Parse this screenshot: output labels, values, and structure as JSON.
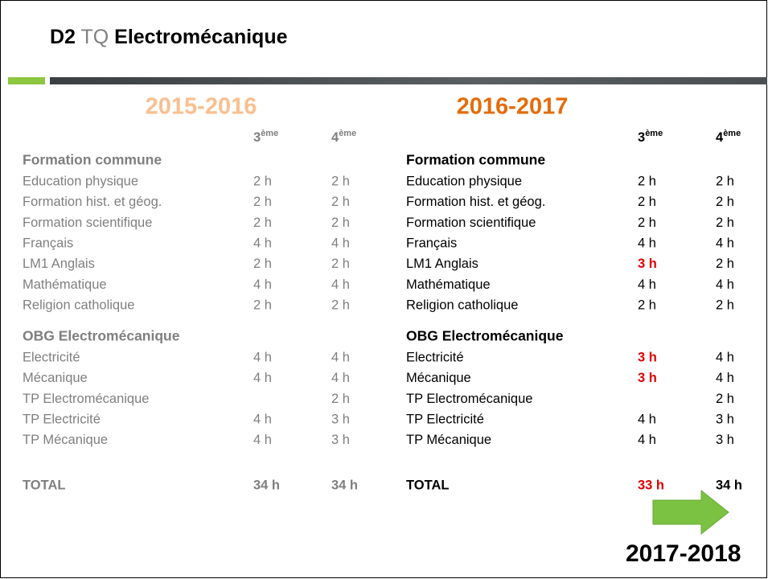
{
  "title": {
    "code": "D2",
    "type": "TQ",
    "name": "Electromécanique"
  },
  "tables": [
    {
      "year": "2015-2016",
      "year_color": "#f9bf8f",
      "text_color": "#7f7f7f",
      "columns": [
        {
          "num": "3",
          "sup": "ème"
        },
        {
          "num": "4",
          "sup": "ème"
        }
      ],
      "sections": [
        {
          "heading": "Formation commune",
          "rows": [
            [
              "Education physique",
              "2 h",
              "2 h"
            ],
            [
              "Formation hist. et géog.",
              "2 h",
              "2 h"
            ],
            [
              "Formation scientifique",
              "2 h",
              "2 h"
            ],
            [
              "Français",
              "4 h",
              "4 h"
            ],
            [
              "LM1 Anglais",
              "2 h",
              "2 h"
            ],
            [
              "Mathématique",
              "4 h",
              "4 h"
            ],
            [
              "Religion catholique",
              "2 h",
              "2 h"
            ]
          ]
        },
        {
          "heading": "OBG Electromécanique",
          "rows": [
            [
              "Electricité",
              "4 h",
              "4 h"
            ],
            [
              "Mécanique",
              "4 h",
              "4 h"
            ],
            [
              "TP Electromécanique",
              null,
              "2 h"
            ],
            [
              "TP Electricité",
              "4 h",
              "3 h"
            ],
            [
              "TP Mécanique",
              "4 h",
              "3 h"
            ]
          ]
        }
      ],
      "total": [
        "TOTAL",
        "34 h",
        "34 h"
      ]
    },
    {
      "year": "2016-2017",
      "year_color": "#e46c0a",
      "text_color": "#000000",
      "columns": [
        {
          "num": "3",
          "sup": "ème"
        },
        {
          "num": "4",
          "sup": "ème"
        }
      ],
      "sections": [
        {
          "heading": "Formation commune",
          "rows": [
            [
              "Education physique",
              "2 h",
              "2 h"
            ],
            [
              "Formation hist. et géog.",
              "2 h",
              "2 h"
            ],
            [
              "Formation scientifique",
              "2 h",
              "2 h"
            ],
            [
              "Français",
              "4 h",
              "4 h"
            ],
            [
              "LM1 Anglais",
              {
                "text": "3 h",
                "color": "#e00000"
              },
              "2 h"
            ],
            [
              "Mathématique",
              "4 h",
              "4 h"
            ],
            [
              "Religion catholique",
              "2 h",
              "2 h"
            ]
          ]
        },
        {
          "heading": "OBG Electromécanique",
          "rows": [
            [
              "Electricité",
              {
                "text": "3 h",
                "color": "#e00000"
              },
              "4 h"
            ],
            [
              "Mécanique",
              {
                "text": "3 h",
                "color": "#e00000"
              },
              "4 h"
            ],
            [
              "TP Electromécanique",
              null,
              "2 h"
            ],
            [
              "TP Electricité",
              "4 h",
              "3 h"
            ],
            [
              "TP Mécanique",
              "4 h",
              "3 h"
            ]
          ]
        }
      ],
      "total": [
        "TOTAL",
        {
          "text": "33 h",
          "color": "#e00000"
        },
        "34 h"
      ]
    }
  ],
  "next_year": "2017-2018"
}
